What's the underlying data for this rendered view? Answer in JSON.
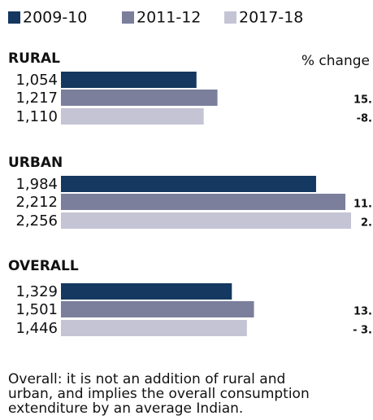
{
  "chart_data": {
    "type": "bar",
    "orientation": "horizontal",
    "change_header": "% change",
    "categories": [
      "RURAL",
      "URBAN",
      "OVERALL"
    ],
    "series": [
      {
        "name": "2009-10",
        "color": "#14385f",
        "values": [
          1054,
          1984,
          1329
        ],
        "value_labels": [
          "1,054",
          "1,984",
          "1,329"
        ]
      },
      {
        "name": "2011-12",
        "color": "#7b7f9c",
        "values": [
          1217,
          2212,
          1501
        ],
        "value_labels": [
          "1,217",
          "2,212",
          "1,501"
        ]
      },
      {
        "name": "2017-18",
        "color": "#c4c4d5",
        "values": [
          1110,
          2256,
          1446
        ],
        "value_labels": [
          "1,110",
          "2,256",
          "1,446"
        ]
      }
    ],
    "pct_change": [
      [
        "15.",
        "-8."
      ],
      [
        "11.",
        "2."
      ],
      [
        "13.",
        "- 3."
      ]
    ],
    "note": [
      "Overall: it is not an addition of rural and",
      "urban, and implies the overall consumption",
      "extenditure by an average Indian."
    ]
  }
}
